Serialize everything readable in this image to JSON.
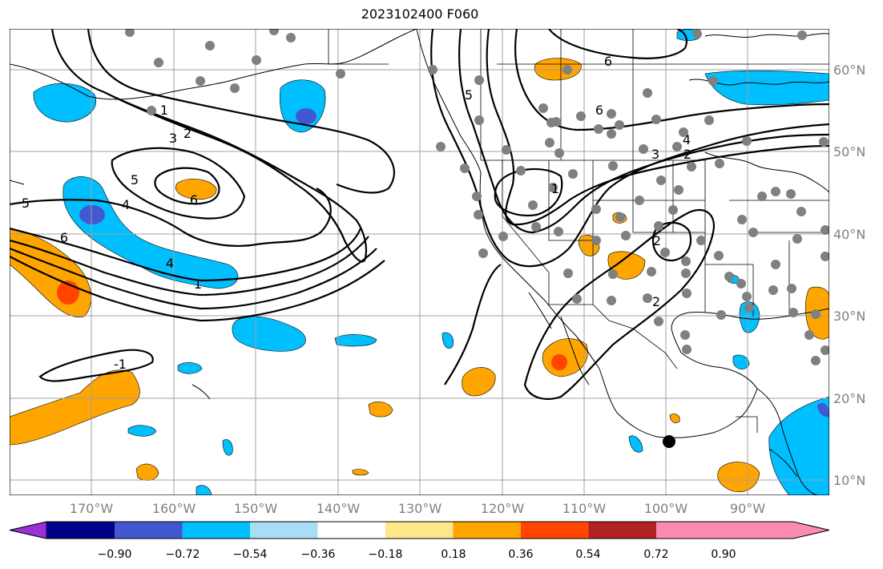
{
  "title": "2023102400 F060",
  "map": {
    "latitude_labels": [
      "60°N",
      "50°N",
      "40°N",
      "30°N",
      "20°N",
      "10°N"
    ],
    "longitude_labels": [
      "170°W",
      "160°W",
      "150°W",
      "140°W",
      "130°W",
      "120°W",
      "110°W",
      "100°W",
      "90°W"
    ],
    "contour_labels": [
      "6",
      "5",
      "6",
      "4",
      "3",
      "2",
      "1",
      "5",
      "4",
      "3",
      "2",
      "1",
      "6",
      "5",
      "4",
      "6",
      "-1",
      "1",
      "2",
      "2",
      "3",
      "4",
      "5",
      "6"
    ],
    "station_marker": "black dot"
  },
  "colorbar": {
    "tick_labels": [
      "−0.90",
      "−0.72",
      "−0.54",
      "−0.36",
      "−0.18",
      "0.18",
      "0.36",
      "0.54",
      "0.72",
      "0.90"
    ],
    "colors": [
      "#9b30d6",
      "#00008b",
      "#4158d0",
      "#00bfff",
      "#aadcf5",
      "#ffffff",
      "#fce78a",
      "#ffa500",
      "#ff4500",
      "#b22222",
      "#f98cb0"
    ]
  }
}
